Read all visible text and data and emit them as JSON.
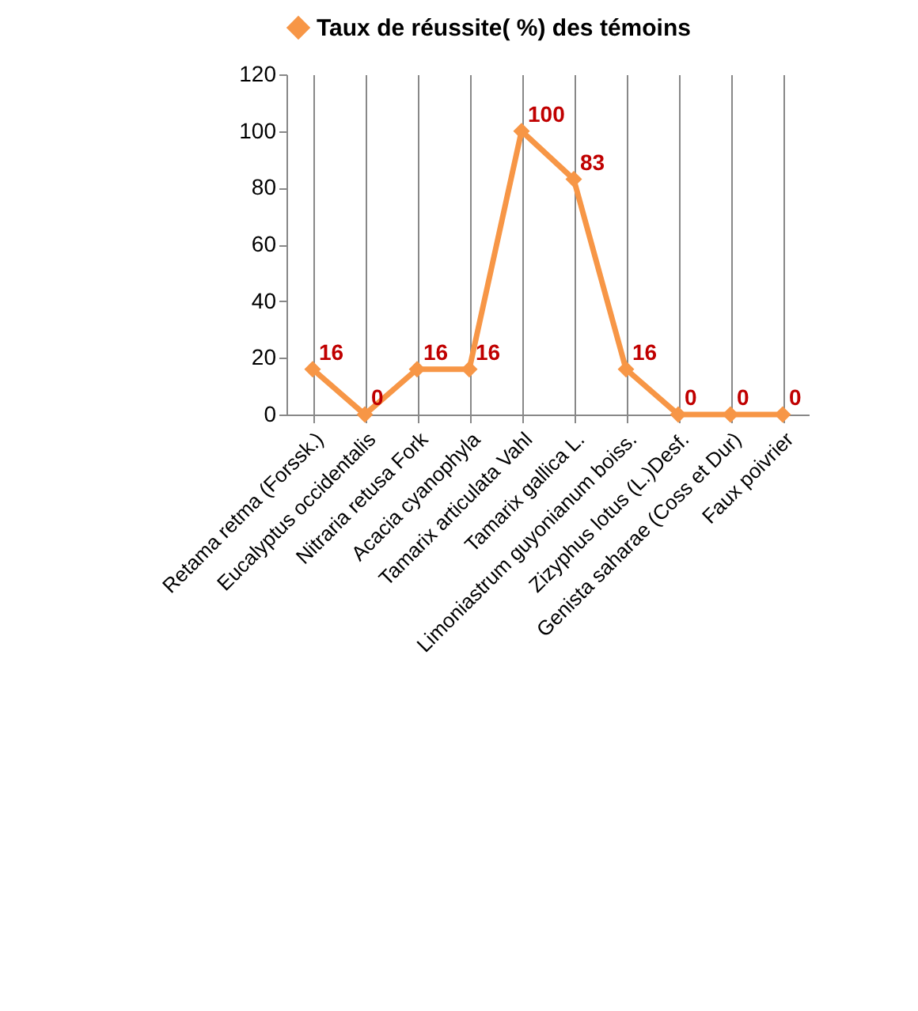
{
  "chart_data": {
    "type": "line",
    "categories": [
      "Retama retma (Forssk.)",
      "Eucalyptus occidentalis",
      "Nitraria retusa Fork",
      "Acacia cyanophyla",
      "Tamarix articulata Vahl",
      "Tamarix gallica L.",
      "Limoniastrum guyonianum boiss.",
      "Zizyphus lotus (L.)Desf.",
      "Genista saharae (Coss et Dur)",
      "Faux poivrier"
    ],
    "series": [
      {
        "name": "Taux de réussite( %) des témoins",
        "color": "#f79646",
        "values": [
          16,
          0,
          16,
          16,
          100,
          83,
          16,
          0,
          0,
          0
        ]
      }
    ],
    "ylim": [
      0,
      120
    ],
    "yticks": [
      0,
      20,
      40,
      60,
      80,
      100,
      120
    ],
    "grid": "x",
    "legend": "top",
    "marker": "diamond",
    "data_labels": true
  }
}
